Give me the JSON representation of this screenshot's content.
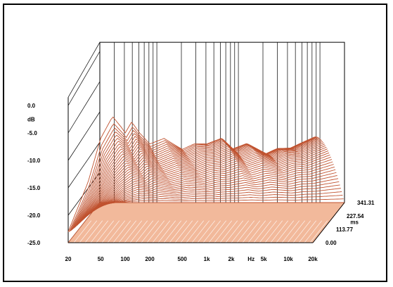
{
  "chart_data": {
    "type": "waterfall-3d",
    "title": "",
    "x_axis": {
      "unit": "Hz",
      "scale": "log",
      "range": [
        20,
        20000
      ],
      "ticks": [
        {
          "label": "20",
          "value": 20
        },
        {
          "label": "50",
          "value": 50
        },
        {
          "label": "100",
          "value": 100
        },
        {
          "label": "200",
          "value": 200
        },
        {
          "label": "500",
          "value": 500
        },
        {
          "label": "1k",
          "value": 1000
        },
        {
          "label": "2k",
          "value": 2000
        },
        {
          "label": "5k",
          "value": 5000
        },
        {
          "label": "10k",
          "value": 10000
        },
        {
          "label": "20k",
          "value": 20000
        }
      ]
    },
    "y_axis": {
      "unit": "dB",
      "range": [
        -25,
        0
      ],
      "ticks": [
        {
          "label": "0.0",
          "value": 0
        },
        {
          "label": "-5.0",
          "value": -5
        },
        {
          "label": "-10.0",
          "value": -10
        },
        {
          "label": "-15.0",
          "value": -15
        },
        {
          "label": "-20.0",
          "value": -20
        },
        {
          "label": "-25.0",
          "value": -25
        }
      ]
    },
    "z_axis": {
      "unit": "ms",
      "range": [
        0,
        341.31
      ],
      "ticks": [
        {
          "label": "0.00",
          "value": 0
        },
        {
          "label": "113.77",
          "value": 113.77
        },
        {
          "label": "227.54",
          "value": 227.54
        },
        {
          "label": "341.31",
          "value": 341.31
        }
      ]
    },
    "slice_count": 36,
    "series": [
      {
        "name": "",
        "time_ms": 0,
        "points": [
          [
            20,
            -23
          ],
          [
            35,
            -14
          ],
          [
            50,
            -6
          ],
          [
            70,
            -2
          ],
          [
            90,
            -4
          ],
          [
            100,
            -5
          ],
          [
            120,
            -3
          ],
          [
            150,
            -5
          ],
          [
            200,
            -7
          ],
          [
            300,
            -6
          ],
          [
            500,
            -8
          ],
          [
            700,
            -7
          ],
          [
            1000,
            -7
          ],
          [
            1500,
            -6
          ],
          [
            2000,
            -8
          ],
          [
            3000,
            -7
          ],
          [
            5000,
            -9
          ],
          [
            7000,
            -8
          ],
          [
            10000,
            -8
          ],
          [
            14000,
            -7
          ],
          [
            20000,
            -6
          ]
        ]
      },
      {
        "name": "",
        "time_ms": 341.31,
        "points": [
          [
            20,
            -25
          ],
          [
            50,
            -25
          ],
          [
            100,
            -25
          ],
          [
            200,
            -25
          ],
          [
            500,
            -25
          ],
          [
            1000,
            -25
          ],
          [
            2000,
            -25
          ],
          [
            5000,
            -25
          ],
          [
            10000,
            -25
          ],
          [
            20000,
            -25
          ]
        ]
      }
    ],
    "colors": {
      "line": "#c0522f",
      "floor": "#f2b99b",
      "floor_hatch": "#ffffff",
      "axes": "#000000"
    },
    "grid": true,
    "legend": "none"
  }
}
